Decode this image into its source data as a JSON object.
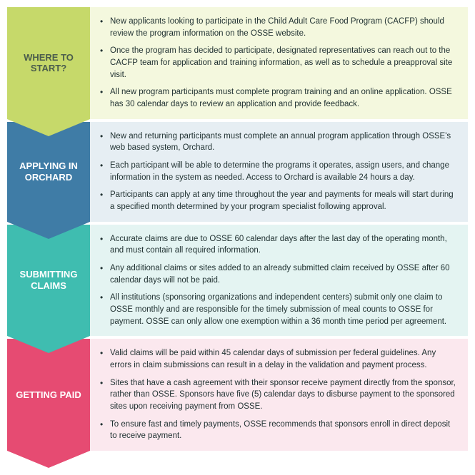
{
  "sections": [
    {
      "label": "WHERE TO START?",
      "label_color": "#4b5d4c",
      "label_bg": "#c6d96a",
      "content_bg": "#f4f8de",
      "arrow_color": "#c6d96a",
      "bullets": [
        "New applicants looking to participate in the Child Adult Care Food Program (CACFP) should review the program information on the OSSE website.",
        "Once the program has decided to participate, designated representatives can reach out to the CACFP team for application and training information, as well as to schedule a preapproval site visit.",
        "All new program participants must complete program training and an online application. OSSE has 30 calendar days to review an application and provide feedback."
      ]
    },
    {
      "label": "APPLYING IN ORCHARD",
      "label_color": "#ffffff",
      "label_bg": "#3f7ca6",
      "content_bg": "#e6eef3",
      "arrow_color": "#3f7ca6",
      "bullets": [
        "New and returning participants must complete an annual program application through OSSE's web based system, Orchard.",
        "Each participant will be able to determine the programs it operates, assign users, and change information in the system as needed. Access to Orchard is available 24 hours a day.",
        "Participants can apply at any time throughout the year and payments for meals will start during a specified month determined by your program specialist following approval."
      ]
    },
    {
      "label": "SUBMITTING CLAIMS",
      "label_color": "#ffffff",
      "label_bg": "#3fbdb0",
      "content_bg": "#e4f4f2",
      "arrow_color": "#3fbdb0",
      "bullets": [
        "Accurate claims are due to OSSE 60 calendar days after the last day of the operating month, and must contain all required information.",
        "Any additional claims or sites added to an already submitted claim received by OSSE after 60 calendar days will not be paid.",
        "All institutions (sponsoring organizations and independent centers) submit only one claim to OSSE monthly and are responsible for the timely submission of meal counts to OSSE for payment. OSSE can only allow one exemption within a 36 month time period per agreement."
      ]
    },
    {
      "label": "GETTING PAID",
      "label_color": "#ffffff",
      "label_bg": "#e64b72",
      "content_bg": "#fbe8ee",
      "arrow_color": "#e64b72",
      "bullets": [
        "Valid claims will be paid within 45 calendar days of submission per federal guidelines. Any errors in claim submissions can result in a delay in the validation and payment process.",
        "Sites that have a cash agreement with their sponsor receive payment directly from the sponsor, rather than OSSE. Sponsors have five (5) calendar days to disburse payment to the sponsored sites upon receiving payment from OSSE.",
        "To ensure fast and timely payments, OSSE recommends that sponsors enroll in direct deposit to receive payment."
      ]
    }
  ]
}
